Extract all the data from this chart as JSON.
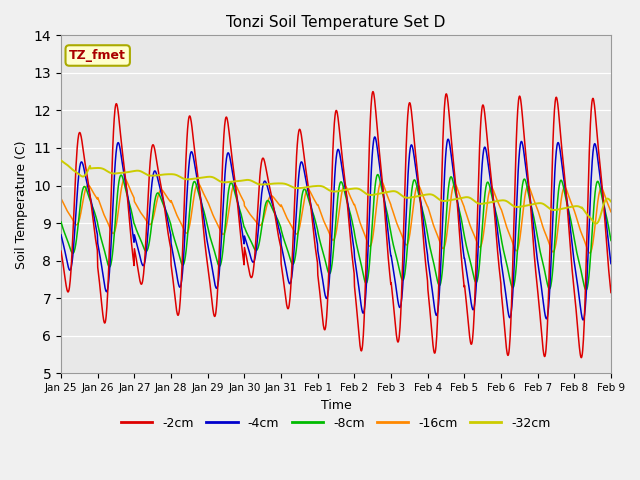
{
  "title": "Tonzi Soil Temperature Set D",
  "xlabel": "Time",
  "ylabel": "Soil Temperature (C)",
  "ylim": [
    5.0,
    14.0
  ],
  "yticks": [
    5.0,
    6.0,
    7.0,
    8.0,
    9.0,
    10.0,
    11.0,
    12.0,
    13.0,
    14.0
  ],
  "xtick_labels": [
    "Jan 25",
    "Jan 26",
    "Jan 27",
    "Jan 28",
    "Jan 29",
    "Jan 30",
    "Jan 31",
    "Feb 1",
    "Feb 2",
    "Feb 3",
    "Feb 4",
    "Feb 5",
    "Feb 6",
    "Feb 7",
    "Feb 8",
    "Feb 9"
  ],
  "series_labels": [
    "-2cm",
    "-4cm",
    "-8cm",
    "-16cm",
    "-32cm"
  ],
  "series_colors": [
    "#dd0000",
    "#0000cc",
    "#00bb00",
    "#ff8800",
    "#cccc00"
  ],
  "annotation_text": "TZ_fmet",
  "annotation_color": "#aa0000",
  "annotation_bg": "#ffffcc",
  "annotation_edge": "#aaaa00",
  "fig_facecolor": "#f0f0f0",
  "ax_facecolor": "#e8e8e8",
  "grid_color": "#ffffff"
}
